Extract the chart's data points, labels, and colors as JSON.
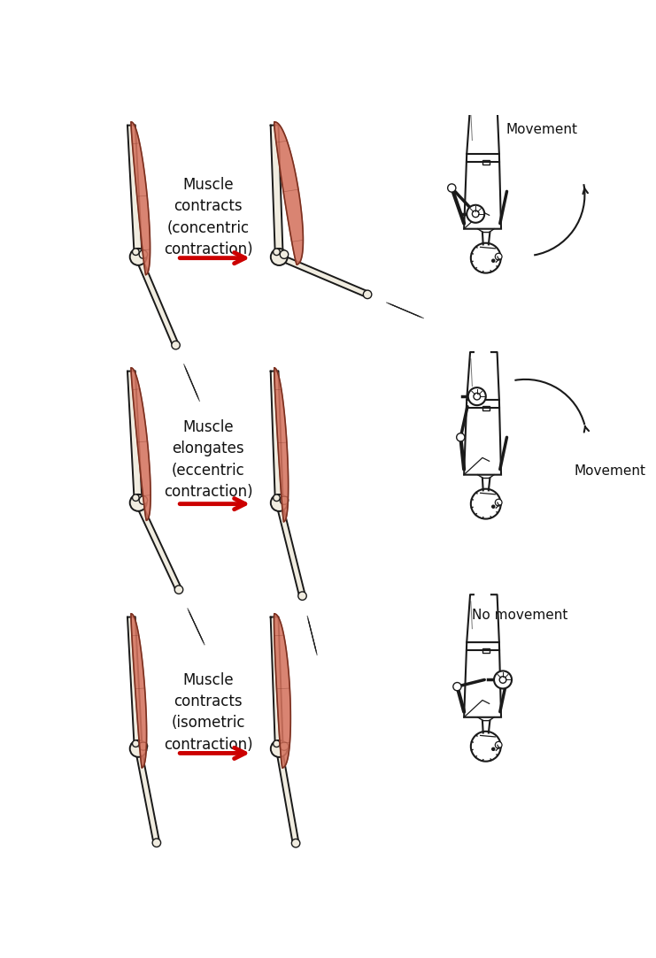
{
  "background_color": "#ffffff",
  "muscle_fill": "#d4735e",
  "muscle_edge": "#7a3020",
  "bone_fill": "#f0ece0",
  "bone_edge": "#1a1a1a",
  "arrow_red": "#cc0000",
  "text_dark": "#111111",
  "fig_lw": 1.4,
  "panel_labels": [
    "Muscle\ncontracts\n(concentric\ncontraction)",
    "Muscle\nelongates\n(eccentric\ncontraction)",
    "Muscle\ncontracts\n(isometric\ncontraction)"
  ],
  "movement_labels": [
    "Movement",
    "Movement",
    "No movement"
  ],
  "figsize": [
    7.41,
    10.83
  ],
  "dpi": 100
}
